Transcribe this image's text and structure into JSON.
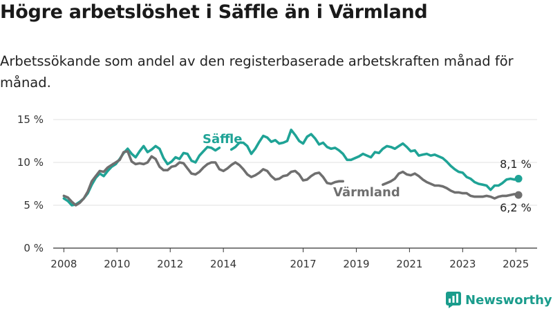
{
  "title": "Högre arbetslöshet i Säffle än i Värmland",
  "subtitle": "Arbetssökande som andel av den registerbaserade arbetskraften månad för månad.",
  "brand": {
    "name": "Newsworthy",
    "icon": "bar-chart-badge-icon",
    "color": "#1a9c8c"
  },
  "chart_data": {
    "type": "line",
    "ylim": [
      0,
      15
    ],
    "xlim": [
      2007.6,
      2025.8
    ],
    "yticks": [
      0,
      5,
      10,
      15
    ],
    "ytick_labels": [
      "0 %",
      "5 %",
      "10 %",
      "15 %"
    ],
    "xticks": [
      2008,
      2010,
      2012,
      2014,
      2017,
      2019,
      2021,
      2023,
      2025
    ],
    "xtick_labels": [
      "2008",
      "2010",
      "2012",
      "2014",
      "2017",
      "2019",
      "2021",
      "2023",
      "2025"
    ],
    "grid": "horizontal",
    "series": [
      {
        "name": "Säffle",
        "color": "#1fa396",
        "end_label": "8,1 %",
        "segments": [
          [
            [
              2008.0,
              5.8
            ],
            [
              2008.15,
              5.5
            ],
            [
              2008.3,
              5.0
            ],
            [
              2008.45,
              5.1
            ],
            [
              2008.6,
              5.4
            ],
            [
              2008.75,
              5.8
            ],
            [
              2008.9,
              6.4
            ],
            [
              2009.05,
              7.4
            ],
            [
              2009.2,
              8.2
            ],
            [
              2009.35,
              8.7
            ],
            [
              2009.5,
              8.4
            ],
            [
              2009.65,
              9.0
            ],
            [
              2009.8,
              9.5
            ],
            [
              2009.95,
              9.8
            ],
            [
              2010.1,
              10.4
            ],
            [
              2010.25,
              11.1
            ],
            [
              2010.4,
              11.6
            ],
            [
              2010.55,
              11.0
            ],
            [
              2010.7,
              10.6
            ],
            [
              2010.85,
              11.3
            ],
            [
              2011.0,
              11.9
            ],
            [
              2011.15,
              11.2
            ],
            [
              2011.3,
              11.5
            ],
            [
              2011.45,
              11.9
            ],
            [
              2011.6,
              11.6
            ],
            [
              2011.75,
              10.5
            ],
            [
              2011.9,
              9.8
            ],
            [
              2012.05,
              10.1
            ],
            [
              2012.2,
              10.6
            ],
            [
              2012.35,
              10.4
            ],
            [
              2012.5,
              11.1
            ],
            [
              2012.65,
              11.0
            ],
            [
              2012.8,
              10.2
            ],
            [
              2012.95,
              10.0
            ],
            [
              2013.1,
              10.8
            ],
            [
              2013.25,
              11.3
            ],
            [
              2013.4,
              11.8
            ],
            [
              2013.55,
              11.7
            ],
            [
              2013.7,
              11.4
            ],
            [
              2013.85,
              11.7
            ]
          ],
          [
            [
              2014.3,
              11.5
            ],
            [
              2014.45,
              11.8
            ],
            [
              2014.6,
              12.3
            ],
            [
              2014.75,
              12.3
            ],
            [
              2014.9,
              11.9
            ],
            [
              2015.05,
              11.0
            ],
            [
              2015.2,
              11.6
            ],
            [
              2015.35,
              12.4
            ],
            [
              2015.5,
              13.1
            ],
            [
              2015.65,
              12.9
            ],
            [
              2015.8,
              12.4
            ],
            [
              2015.95,
              12.6
            ],
            [
              2016.1,
              12.2
            ],
            [
              2016.25,
              12.3
            ],
            [
              2016.4,
              12.5
            ],
            [
              2016.55,
              13.8
            ],
            [
              2016.7,
              13.2
            ],
            [
              2016.85,
              12.5
            ],
            [
              2017.0,
              12.2
            ],
            [
              2017.15,
              13.0
            ],
            [
              2017.3,
              13.3
            ],
            [
              2017.45,
              12.8
            ],
            [
              2017.6,
              12.1
            ],
            [
              2017.75,
              12.3
            ],
            [
              2017.9,
              11.8
            ],
            [
              2018.05,
              11.6
            ],
            [
              2018.2,
              11.7
            ],
            [
              2018.35,
              11.4
            ],
            [
              2018.5,
              11.0
            ],
            [
              2018.65,
              10.3
            ],
            [
              2018.8,
              10.3
            ],
            [
              2018.95,
              10.5
            ],
            [
              2019.1,
              10.7
            ],
            [
              2019.25,
              11.0
            ],
            [
              2019.4,
              10.8
            ],
            [
              2019.55,
              10.6
            ],
            [
              2019.7,
              11.2
            ],
            [
              2019.85,
              11.1
            ],
            [
              2020.0,
              11.6
            ],
            [
              2020.15,
              11.9
            ],
            [
              2020.3,
              11.8
            ],
            [
              2020.45,
              11.6
            ],
            [
              2020.6,
              11.9
            ],
            [
              2020.75,
              12.2
            ],
            [
              2020.9,
              11.8
            ],
            [
              2021.05,
              11.3
            ],
            [
              2021.2,
              11.4
            ],
            [
              2021.35,
              10.8
            ],
            [
              2021.5,
              10.9
            ],
            [
              2021.65,
              11.0
            ],
            [
              2021.8,
              10.8
            ],
            [
              2021.95,
              10.9
            ],
            [
              2022.1,
              10.7
            ],
            [
              2022.25,
              10.5
            ],
            [
              2022.4,
              10.1
            ],
            [
              2022.55,
              9.6
            ],
            [
              2022.7,
              9.2
            ],
            [
              2022.85,
              8.9
            ],
            [
              2023.0,
              8.8
            ],
            [
              2023.15,
              8.3
            ],
            [
              2023.3,
              8.1
            ],
            [
              2023.45,
              7.7
            ],
            [
              2023.6,
              7.5
            ],
            [
              2023.75,
              7.4
            ],
            [
              2023.9,
              7.3
            ],
            [
              2024.05,
              6.8
            ],
            [
              2024.2,
              7.3
            ],
            [
              2024.35,
              7.3
            ],
            [
              2024.5,
              7.6
            ],
            [
              2024.65,
              8.0
            ],
            [
              2024.8,
              8.1
            ],
            [
              2024.95,
              8.0
            ],
            [
              2025.1,
              8.1
            ]
          ]
        ]
      },
      {
        "name": "Värmland",
        "color": "#6f6f6f",
        "end_label": "6,2 %",
        "segments": [
          [
            [
              2008.0,
              6.1
            ],
            [
              2008.15,
              5.9
            ],
            [
              2008.3,
              5.4
            ],
            [
              2008.45,
              5.0
            ],
            [
              2008.6,
              5.3
            ],
            [
              2008.75,
              5.8
            ],
            [
              2008.9,
              6.6
            ],
            [
              2009.05,
              7.8
            ],
            [
              2009.2,
              8.4
            ],
            [
              2009.35,
              9.0
            ],
            [
              2009.5,
              8.9
            ],
            [
              2009.65,
              9.4
            ],
            [
              2009.8,
              9.7
            ],
            [
              2009.95,
              10.0
            ],
            [
              2010.1,
              10.3
            ],
            [
              2010.25,
              11.2
            ],
            [
              2010.4,
              11.3
            ],
            [
              2010.55,
              10.1
            ],
            [
              2010.7,
              9.8
            ],
            [
              2010.85,
              9.9
            ],
            [
              2011.0,
              9.8
            ],
            [
              2011.15,
              10.0
            ],
            [
              2011.3,
              10.7
            ],
            [
              2011.45,
              10.4
            ],
            [
              2011.6,
              9.5
            ],
            [
              2011.75,
              9.1
            ],
            [
              2011.9,
              9.1
            ],
            [
              2012.05,
              9.5
            ],
            [
              2012.2,
              9.6
            ],
            [
              2012.35,
              10.0
            ],
            [
              2012.5,
              9.9
            ],
            [
              2012.65,
              9.3
            ],
            [
              2012.8,
              8.7
            ],
            [
              2012.95,
              8.6
            ],
            [
              2013.1,
              8.9
            ],
            [
              2013.25,
              9.4
            ],
            [
              2013.4,
              9.8
            ],
            [
              2013.55,
              10.0
            ],
            [
              2013.7,
              10.0
            ],
            [
              2013.85,
              9.2
            ],
            [
              2014.0,
              9.0
            ],
            [
              2014.15,
              9.3
            ],
            [
              2014.3,
              9.7
            ],
            [
              2014.45,
              10.0
            ],
            [
              2014.6,
              9.7
            ],
            [
              2014.75,
              9.2
            ],
            [
              2014.9,
              8.6
            ],
            [
              2015.05,
              8.3
            ],
            [
              2015.2,
              8.5
            ],
            [
              2015.35,
              8.8
            ],
            [
              2015.5,
              9.2
            ],
            [
              2015.65,
              9.0
            ],
            [
              2015.8,
              8.4
            ],
            [
              2015.95,
              8.0
            ],
            [
              2016.1,
              8.1
            ],
            [
              2016.25,
              8.4
            ],
            [
              2016.4,
              8.5
            ],
            [
              2016.55,
              8.9
            ],
            [
              2016.7,
              9.0
            ],
            [
              2016.85,
              8.6
            ],
            [
              2017.0,
              7.9
            ],
            [
              2017.15,
              8.0
            ],
            [
              2017.3,
              8.4
            ],
            [
              2017.45,
              8.7
            ],
            [
              2017.6,
              8.8
            ],
            [
              2017.75,
              8.3
            ],
            [
              2017.9,
              7.6
            ],
            [
              2018.05,
              7.5
            ],
            [
              2018.2,
              7.7
            ],
            [
              2018.35,
              7.8
            ],
            [
              2018.5,
              7.8
            ]
          ],
          [
            [
              2020.0,
              7.4
            ],
            [
              2020.15,
              7.6
            ],
            [
              2020.3,
              7.8
            ],
            [
              2020.45,
              8.1
            ],
            [
              2020.6,
              8.7
            ],
            [
              2020.75,
              8.9
            ],
            [
              2020.9,
              8.6
            ],
            [
              2021.05,
              8.5
            ],
            [
              2021.2,
              8.7
            ],
            [
              2021.35,
              8.4
            ],
            [
              2021.5,
              8.0
            ],
            [
              2021.65,
              7.7
            ],
            [
              2021.8,
              7.5
            ],
            [
              2021.95,
              7.3
            ],
            [
              2022.1,
              7.3
            ],
            [
              2022.25,
              7.2
            ],
            [
              2022.4,
              7.0
            ],
            [
              2022.55,
              6.7
            ],
            [
              2022.7,
              6.5
            ],
            [
              2022.85,
              6.5
            ],
            [
              2023.0,
              6.4
            ],
            [
              2023.15,
              6.4
            ],
            [
              2023.3,
              6.1
            ],
            [
              2023.45,
              6.0
            ],
            [
              2023.6,
              6.0
            ],
            [
              2023.75,
              6.0
            ],
            [
              2023.9,
              6.1
            ],
            [
              2024.05,
              6.0
            ],
            [
              2024.2,
              5.8
            ],
            [
              2024.35,
              6.0
            ],
            [
              2024.5,
              6.1
            ],
            [
              2024.65,
              6.1
            ],
            [
              2024.8,
              6.2
            ],
            [
              2024.95,
              6.3
            ],
            [
              2025.1,
              6.2
            ]
          ]
        ]
      }
    ]
  }
}
